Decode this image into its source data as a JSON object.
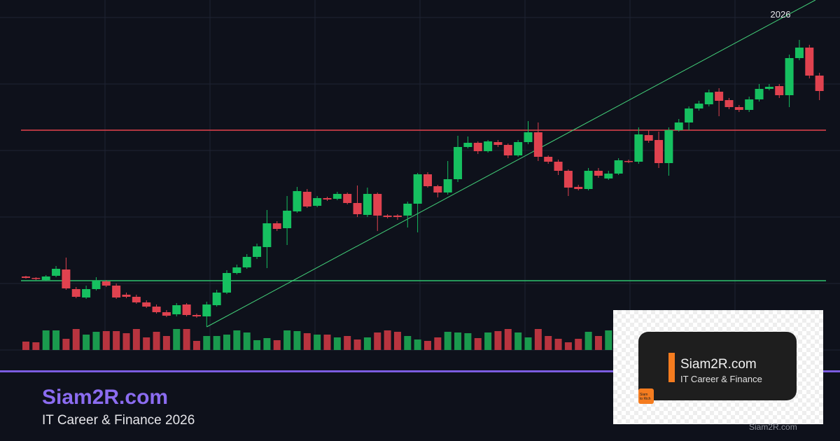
{
  "chart_data": {
    "type": "candlestick",
    "year_label": "2026",
    "open": [
      105,
      103,
      100,
      106,
      115,
      87,
      75,
      87,
      98,
      92,
      79,
      76,
      68,
      62,
      54,
      51,
      65,
      50,
      48,
      64,
      82,
      110,
      118,
      133,
      147,
      181,
      174,
      198,
      226,
      206,
      217,
      216,
      223,
      210,
      193,
      223,
      192,
      192,
      192,
      209,
      251,
      234,
      225,
      244,
      290,
      296,
      284,
      297,
      293,
      278,
      297,
      311,
      276,
      269,
      256,
      233,
      230,
      256,
      245,
      252,
      270,
      269,
      307,
      300,
      267,
      314,
      325,
      345,
      351,
      369,
      357,
      347,
      343,
      358,
      373,
      377,
      364,
      417,
      432,
      392
    ],
    "close": [
      103,
      102,
      105,
      116,
      88,
      76,
      87,
      99,
      92,
      75,
      76,
      68,
      62,
      54,
      49,
      64,
      50,
      48,
      65,
      82,
      110,
      118,
      133,
      148,
      181,
      173,
      199,
      227,
      205,
      217,
      215,
      223,
      210,
      194,
      223,
      192,
      190,
      190,
      209,
      251,
      234,
      225,
      244,
      290,
      296,
      284,
      298,
      293,
      278,
      297,
      311,
      276,
      269,
      256,
      232,
      230,
      256,
      249,
      252,
      271,
      269,
      308,
      299,
      267,
      314,
      325,
      345,
      352,
      368,
      356,
      347,
      343,
      358,
      373,
      376,
      364,
      417,
      432,
      392,
      370
    ],
    "high": [
      106,
      104,
      107,
      120,
      132,
      90,
      92,
      104,
      100,
      95,
      82,
      79,
      71,
      65,
      57,
      67,
      67,
      52,
      69,
      86,
      114,
      122,
      137,
      152,
      200,
      184,
      220,
      233,
      230,
      220,
      219,
      226,
      225,
      235,
      232,
      225,
      194,
      194,
      212,
      253,
      254,
      236,
      270,
      306,
      305,
      298,
      300,
      300,
      295,
      300,
      327,
      325,
      278,
      272,
      258,
      236,
      260,
      260,
      256,
      274,
      272,
      318,
      314,
      312,
      318,
      330,
      348,
      356,
      372,
      374,
      360,
      350,
      362,
      380,
      380,
      380,
      422,
      443,
      436,
      396
    ],
    "low": [
      102,
      100,
      99,
      104,
      86,
      74,
      73,
      85,
      90,
      73,
      74,
      66,
      60,
      52,
      47,
      48,
      48,
      46,
      33,
      62,
      80,
      108,
      116,
      130,
      117,
      170,
      150,
      196,
      203,
      204,
      213,
      214,
      208,
      190,
      190,
      170,
      188,
      186,
      175,
      168,
      232,
      218,
      222,
      240,
      288,
      280,
      282,
      290,
      274,
      276,
      294,
      270,
      266,
      250,
      220,
      228,
      228,
      246,
      243,
      250,
      267,
      266,
      296,
      260,
      249,
      312,
      314,
      342,
      348,
      334,
      344,
      340,
      340,
      355,
      371,
      360,
      347,
      414,
      388,
      357
    ],
    "volume": [
      12,
      11,
      28,
      28,
      16,
      30,
      22,
      26,
      27,
      27,
      24,
      30,
      18,
      26,
      20,
      30,
      30,
      13,
      20,
      20,
      22,
      28,
      25,
      14,
      17,
      14,
      28,
      27,
      24,
      22,
      22,
      18,
      20,
      15,
      18,
      25,
      28,
      26,
      20,
      15,
      13,
      18,
      26,
      25,
      24,
      17,
      25,
      27,
      30,
      25,
      18,
      30,
      20,
      16,
      11,
      16,
      26,
      20,
      28,
      26,
      25,
      15,
      12,
      18,
      16,
      20,
      26,
      22,
      30,
      24,
      20,
      28,
      22,
      25,
      18,
      28,
      22,
      25,
      28,
      16
    ],
    "ylim": [
      0,
      500
    ],
    "up_color": "#16c060",
    "down_color": "#e0424f",
    "volume_up_color": "#1a9a4e",
    "volume_down_color": "#b8343f",
    "levels": [
      {
        "value": 314,
        "color": "#e5424d"
      },
      {
        "value": 99,
        "color": "#2ec46e"
      }
    ],
    "trend": {
      "x": [
        18,
        78.6
      ],
      "y": [
        33,
        500
      ],
      "color": "#43d17a"
    }
  },
  "footer": {
    "title": "Siam2R.com",
    "subtitle": "IT Career & Finance 2026"
  },
  "badge": {
    "title": "Siam2R.com",
    "subtitle": "IT Career & Finance",
    "icon_line1": "Siam",
    "icon_line2": "to Rich",
    "watermark": "Siam2R.com"
  }
}
